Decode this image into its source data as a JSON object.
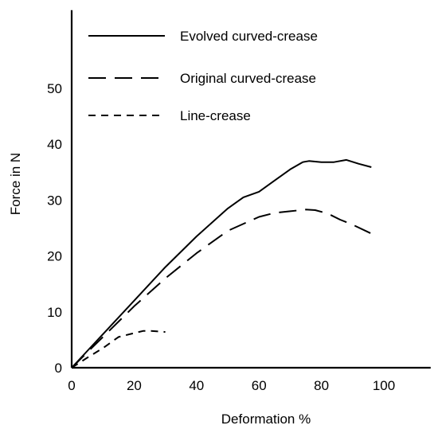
{
  "chart_data": {
    "type": "line",
    "title": "",
    "xlabel": "Deformation %",
    "ylabel": "Force in N",
    "xlim": [
      0,
      115
    ],
    "ylim": [
      0,
      64
    ],
    "x_ticks": [
      0,
      20,
      40,
      60,
      80,
      100
    ],
    "y_ticks": [
      0,
      10,
      20,
      30,
      40,
      50
    ],
    "grid": false,
    "legend_position": "top-left",
    "series": [
      {
        "name": "Evolved curved-crease",
        "style": "solid",
        "x": [
          0,
          10,
          20,
          30,
          40,
          50,
          55,
          60,
          65,
          70,
          74,
          76,
          80,
          84,
          88,
          92,
          96
        ],
        "y": [
          0,
          6,
          12,
          18,
          23.5,
          28.5,
          30.5,
          31.5,
          33.5,
          35.5,
          36.8,
          37,
          36.8,
          36.8,
          37.2,
          36.5,
          35.9
        ]
      },
      {
        "name": "Original curved-crease",
        "style": "long-dash",
        "x": [
          0,
          10,
          20,
          30,
          40,
          50,
          56,
          60,
          65,
          70,
          75,
          78,
          82,
          86,
          90,
          96
        ],
        "y": [
          0,
          5.5,
          11,
          16,
          20.5,
          24.5,
          26,
          27,
          27.7,
          28,
          28.3,
          28.2,
          27.6,
          26.5,
          25.6,
          24
        ]
      },
      {
        "name": "Line-crease",
        "style": "short-dash",
        "x": [
          0,
          5,
          10,
          15,
          20,
          23,
          25,
          28,
          30
        ],
        "y": [
          0,
          1.8,
          3.5,
          5.5,
          6.2,
          6.6,
          6.6,
          6.5,
          6.4
        ]
      }
    ]
  }
}
